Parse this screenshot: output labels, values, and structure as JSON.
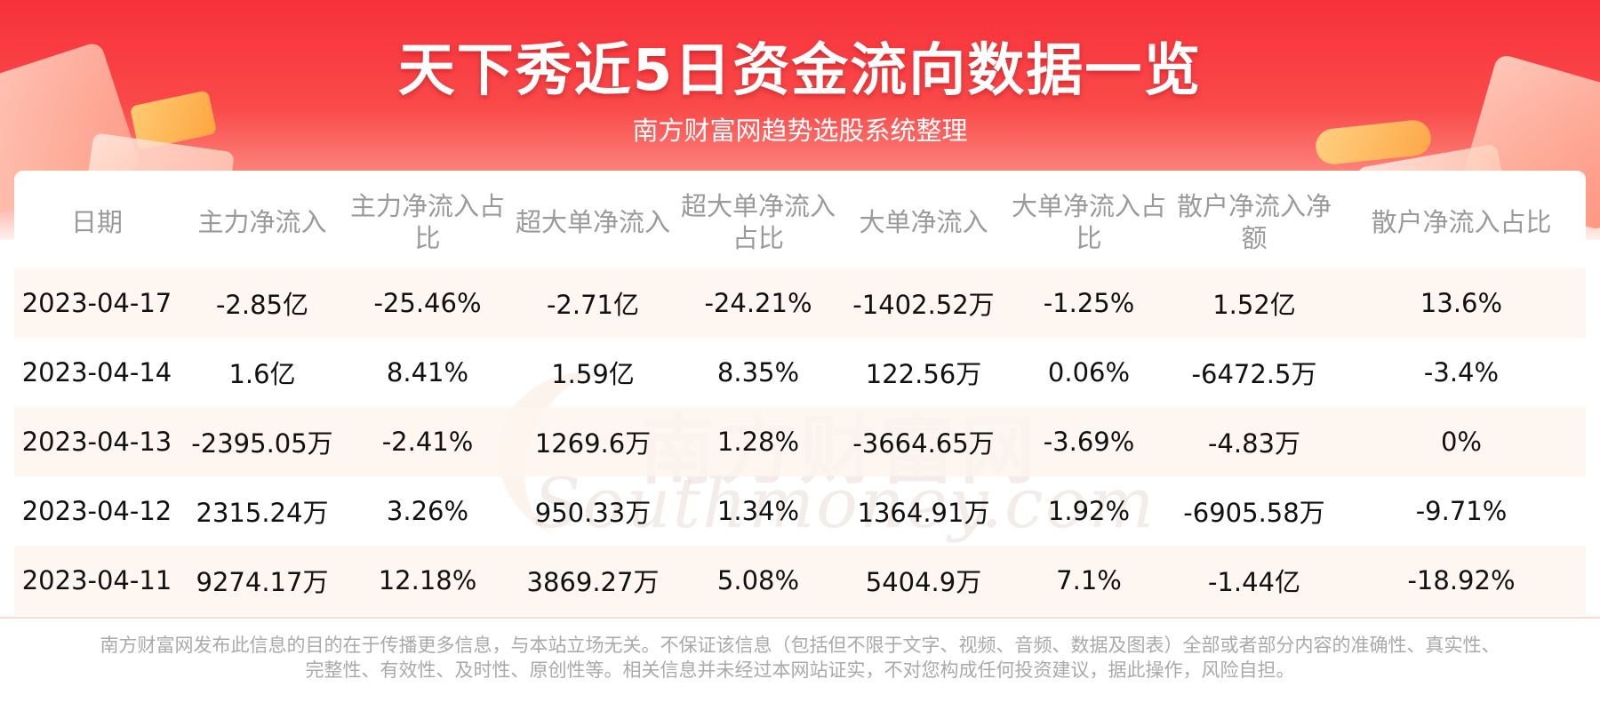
{
  "title": "天下秀近5日资金流向数据一览",
  "subtitle": "南方财富网趋势选股系统整理",
  "watermark": {
    "cn": "南方财富网",
    "en": "Southmoney.com"
  },
  "colors": {
    "banner_red": "#f8303a",
    "row_stripe": "#fdf4ee",
    "header_text": "#9a9a9a"
  },
  "table": {
    "headers": [
      "日期",
      "主力净流入",
      "主力净流入占比",
      "超大单净流入",
      "超大单净流入占比",
      "大单净流入",
      "大单净流入占比",
      "散户净流入净额",
      "散户净流入占比"
    ],
    "rows": [
      [
        "2023-04-17",
        "-2.85亿",
        "-25.46%",
        "-2.71亿",
        "-24.21%",
        "-1402.52万",
        "-1.25%",
        "1.52亿",
        "13.6%"
      ],
      [
        "2023-04-14",
        "1.6亿",
        "8.41%",
        "1.59亿",
        "8.35%",
        "122.56万",
        "0.06%",
        "-6472.5万",
        "-3.4%"
      ],
      [
        "2023-04-13",
        "-2395.05万",
        "-2.41%",
        "1269.6万",
        "1.28%",
        "-3664.65万",
        "-3.69%",
        "-4.83万",
        "0%"
      ],
      [
        "2023-04-12",
        "2315.24万",
        "3.26%",
        "950.33万",
        "1.34%",
        "1364.91万",
        "1.92%",
        "-6905.58万",
        "-9.71%"
      ],
      [
        "2023-04-11",
        "9274.17万",
        "12.18%",
        "3869.27万",
        "5.08%",
        "5404.9万",
        "7.1%",
        "-1.44亿",
        "-18.92%"
      ]
    ]
  },
  "footer": {
    "line1": "南方财富网发布此信息的目的在于传播更多信息，与本站立场无关。不保证该信息（包括但不限于文字、视频、音频、数据及图表）全部或者部分内容的准确性、真实性、",
    "line2": "完整性、有效性、及时性、原创性等。相关信息并未经过本网站证实，不对您构成任何投资建议，据此操作，风险自担。"
  }
}
